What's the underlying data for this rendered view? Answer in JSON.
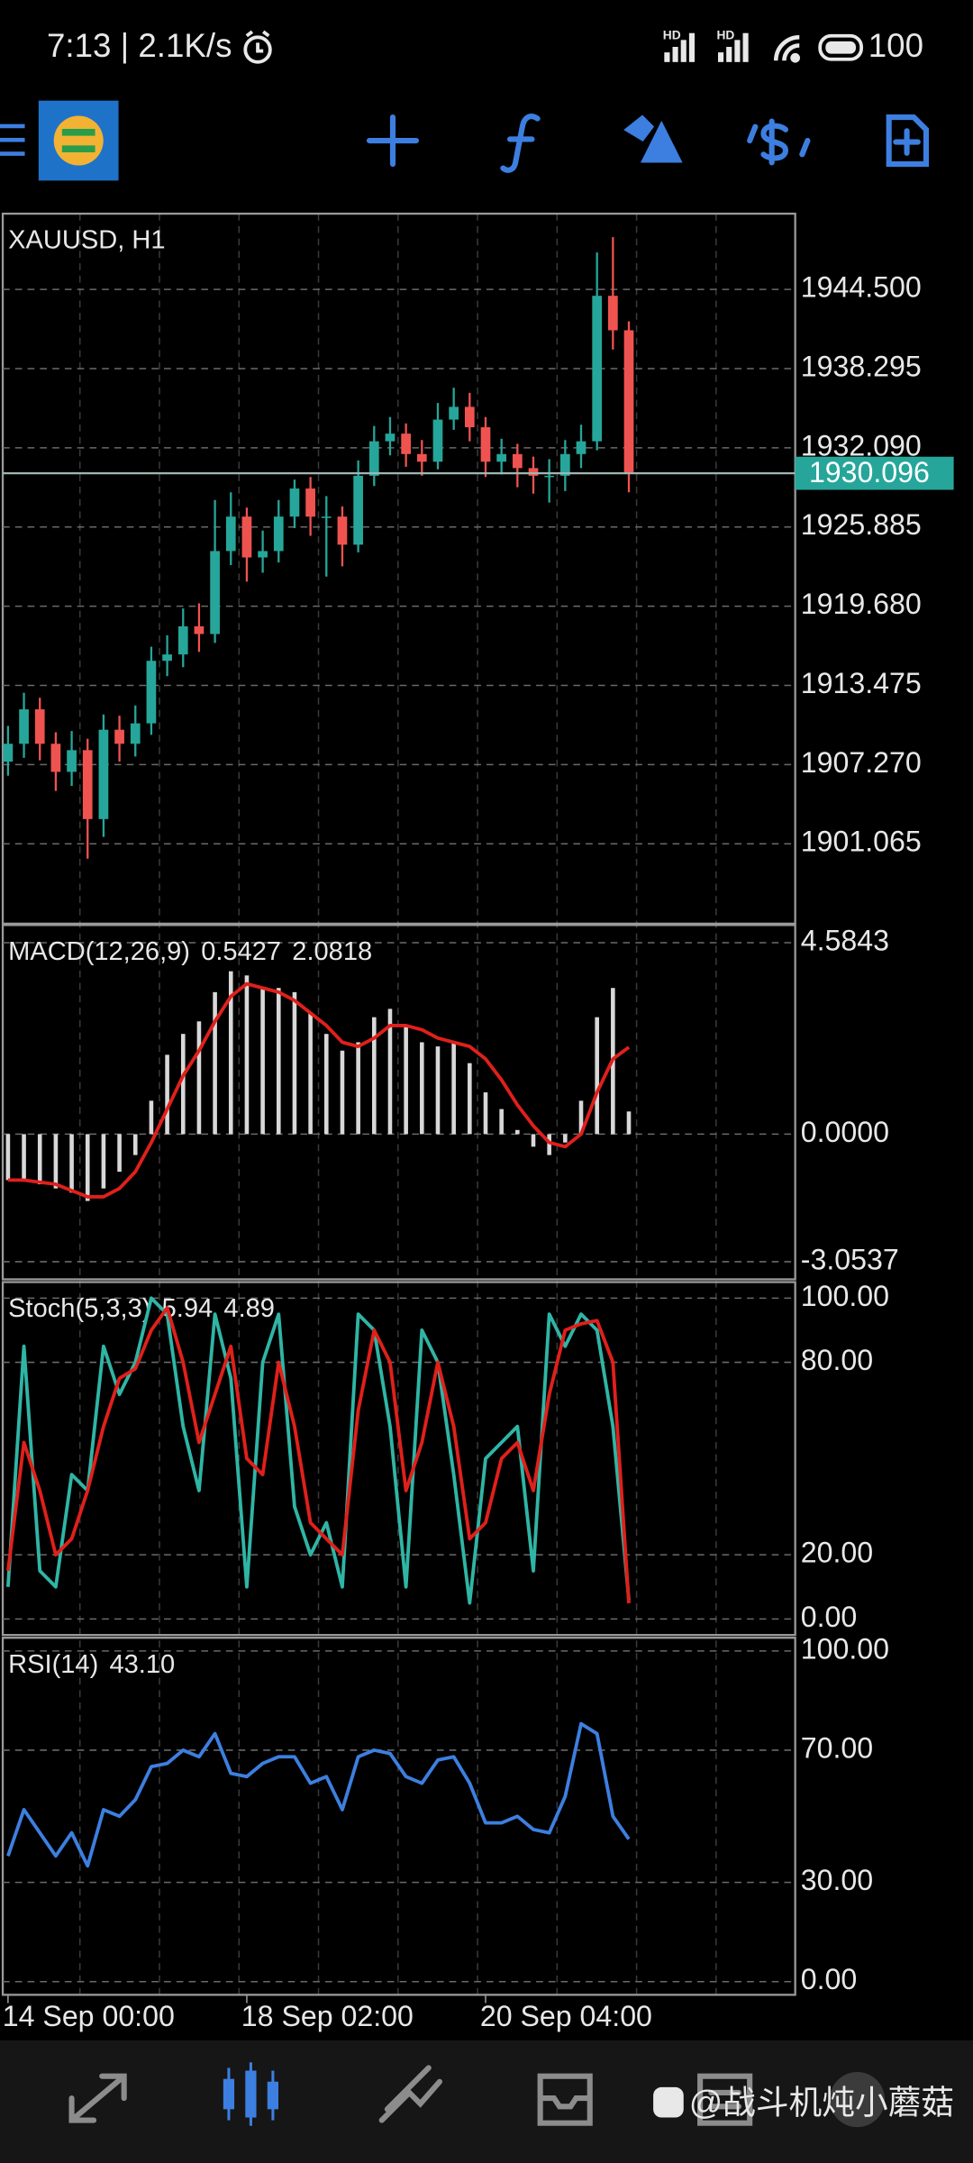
{
  "status_bar": {
    "time": "7:13 | 2.1K/s",
    "signal_labels": [
      "HD",
      "HD"
    ],
    "battery": "100"
  },
  "watermark": "@战斗机炖小蘑菇",
  "chart_data": [
    {
      "type": "candlestick",
      "title": "XAUUSD, H1",
      "open": [
        1907.5,
        1908.9,
        1911.6,
        1908.9,
        1906.7,
        1908.4,
        1903.0,
        1910.0,
        1908.9,
        1910.5,
        1915.4,
        1915.9,
        1918.1,
        1917.5,
        1924.0,
        1926.7,
        1923.5,
        1924.0,
        1926.7,
        1928.9,
        1926.7,
        1926.7,
        1924.5,
        1929.9,
        1932.6,
        1933.2,
        1931.6,
        1931.0,
        1934.3,
        1935.3,
        1933.7,
        1931.0,
        1931.6,
        1930.5,
        1929.9,
        1929.9,
        1931.6,
        1932.6,
        1944.0,
        1941.3
      ],
      "high": [
        1910.3,
        1912.9,
        1912.5,
        1909.8,
        1909.9,
        1909.3,
        1911.2,
        1911.1,
        1911.9,
        1916.5,
        1917.4,
        1919.5,
        1919.9,
        1928.0,
        1928.6,
        1927.4,
        1925.6,
        1928.0,
        1929.6,
        1929.8,
        1928.3,
        1927.5,
        1931.1,
        1933.8,
        1934.5,
        1934.0,
        1932.7,
        1935.6,
        1936.8,
        1936.4,
        1934.5,
        1932.8,
        1932.4,
        1931.4,
        1931.2,
        1932.7,
        1933.9,
        1947.4,
        1948.6,
        1942.0
      ],
      "low": [
        1906.4,
        1907.8,
        1907.6,
        1905.2,
        1905.6,
        1899.9,
        1901.6,
        1907.5,
        1907.9,
        1909.6,
        1914.2,
        1914.9,
        1916.1,
        1916.8,
        1922.9,
        1921.6,
        1922.3,
        1923.1,
        1925.8,
        1925.2,
        1922.0,
        1922.8,
        1923.9,
        1929.1,
        1931.5,
        1930.6,
        1929.9,
        1930.4,
        1933.5,
        1932.6,
        1929.8,
        1930.0,
        1929.0,
        1928.5,
        1927.8,
        1928.7,
        1930.5,
        1931.9,
        1939.8,
        1928.6
      ],
      "close": [
        1908.9,
        1911.6,
        1908.9,
        1906.7,
        1908.4,
        1903.0,
        1910.0,
        1908.9,
        1910.5,
        1915.4,
        1915.9,
        1918.1,
        1917.5,
        1924.0,
        1926.7,
        1923.5,
        1924.0,
        1926.7,
        1928.9,
        1926.7,
        1926.7,
        1924.5,
        1929.9,
        1932.6,
        1933.2,
        1931.6,
        1931.0,
        1934.3,
        1935.3,
        1933.7,
        1931.0,
        1931.6,
        1930.5,
        1929.9,
        1929.9,
        1931.6,
        1932.6,
        1944.0,
        1941.3,
        1930.096
      ],
      "colors": {
        "up": "#26a69a",
        "down": "#ef5350"
      },
      "current_price": 1930.096,
      "current_price_color": "#26a69a",
      "xlim": [
        -0.33,
        49.45
      ],
      "xticks": [
        {
          "value": 0,
          "label": "14 Sep 00:00"
        },
        {
          "value": 15,
          "label": "18 Sep 02:00"
        },
        {
          "value": 30,
          "label": "20 Sep 04:00"
        }
      ],
      "ylim": [
        1894.806,
        1950.435
      ],
      "yticks": [
        {
          "value": 1944.5,
          "label": "1944.500"
        },
        1938.295,
        {
          "value": 1932.09,
          "label": "1932.090"
        },
        1925.885,
        {
          "value": 1919.68,
          "label": "1919.680"
        },
        1913.475,
        {
          "value": 1907.27,
          "label": "1907.270"
        },
        1901.065
      ],
      "grid": true
    },
    {
      "type": "macd",
      "title": "MACD(12,26,9)",
      "readout": [
        "0.5427",
        "2.0818"
      ],
      "histogram": [
        -1.1,
        -1.1,
        -1.2,
        -1.3,
        -1.4,
        -1.6,
        -1.3,
        -0.9,
        -0.5,
        0.8,
        1.9,
        2.4,
        2.7,
        3.4,
        3.9,
        3.8,
        3.5,
        3.5,
        3.4,
        2.9,
        2.4,
        2.0,
        2.2,
        2.8,
        3.0,
        2.6,
        2.2,
        2.1,
        2.2,
        1.7,
        1.0,
        0.6,
        0.1,
        -0.3,
        -0.5,
        -0.2,
        0.8,
        2.8,
        3.5,
        0.5427
      ],
      "signal": [
        -1.1,
        -1.1,
        -1.15,
        -1.2,
        -1.35,
        -1.5,
        -1.5,
        -1.3,
        -0.9,
        -0.2,
        0.6,
        1.4,
        2.0,
        2.7,
        3.3,
        3.6,
        3.5,
        3.4,
        3.2,
        2.9,
        2.6,
        2.2,
        2.1,
        2.3,
        2.6,
        2.6,
        2.5,
        2.3,
        2.2,
        2.1,
        1.8,
        1.3,
        0.7,
        0.2,
        -0.2,
        -0.3,
        0.0,
        1.0,
        1.8,
        2.0818
      ],
      "colors": {
        "histogram": "#d8d8d8",
        "signal": "#e0201b"
      },
      "ylim": [
        -3.476,
        5.007
      ],
      "yticks": [
        4.5843,
        {
          "value": 0,
          "label": "0.0000"
        },
        -3.0537
      ],
      "grid": true
    },
    {
      "type": "line",
      "title": "Stoch(5,3,3)",
      "readout": [
        "5.94",
        "4.89"
      ],
      "series": [
        {
          "color": "#2fb5a5",
          "values": [
            10,
            85,
            15,
            10,
            45,
            40,
            85,
            70,
            80,
            100,
            95,
            60,
            40,
            95,
            75,
            10,
            80,
            95,
            35,
            20,
            30,
            10,
            95,
            90,
            60,
            10,
            90,
            80,
            45,
            5,
            50,
            55,
            60,
            15,
            95,
            85,
            95,
            90,
            60,
            5.94
          ]
        },
        {
          "color": "#e0201b",
          "values": [
            15,
            55,
            40,
            20,
            25,
            40,
            60,
            75,
            78,
            90,
            97,
            80,
            55,
            70,
            85,
            50,
            45,
            80,
            60,
            30,
            25,
            20,
            65,
            90,
            80,
            40,
            55,
            80,
            60,
            25,
            30,
            50,
            55,
            40,
            70,
            90,
            92,
            93,
            80,
            4.89
          ]
        }
      ],
      "ylim": [
        -5,
        105
      ],
      "yticks": [
        {
          "value": 100,
          "label": "100.00"
        },
        {
          "value": 80,
          "label": "80.00"
        },
        {
          "value": 20,
          "label": "20.00"
        },
        {
          "value": 0,
          "label": "0.00"
        }
      ],
      "grid": true
    },
    {
      "type": "line",
      "title": "RSI(14)",
      "readout": [
        "43.10"
      ],
      "series": [
        {
          "color": "#3d7fe0",
          "values": [
            38,
            52,
            45,
            38,
            45,
            35,
            52,
            50,
            55,
            65,
            66,
            70,
            68,
            75,
            63,
            62,
            66,
            68,
            68,
            60,
            62,
            52,
            68,
            70,
            69,
            62,
            60,
            67,
            68,
            60,
            48,
            48,
            50,
            46,
            45,
            56,
            78,
            75,
            50,
            43.1
          ]
        }
      ],
      "ylim": [
        -4,
        104
      ],
      "yticks": [
        {
          "value": 100,
          "label": "100.00"
        },
        {
          "value": 70,
          "label": "70.00"
        },
        {
          "value": 30,
          "label": "30.00"
        },
        {
          "value": 0,
          "label": "0.00"
        }
      ],
      "grid": true
    }
  ]
}
